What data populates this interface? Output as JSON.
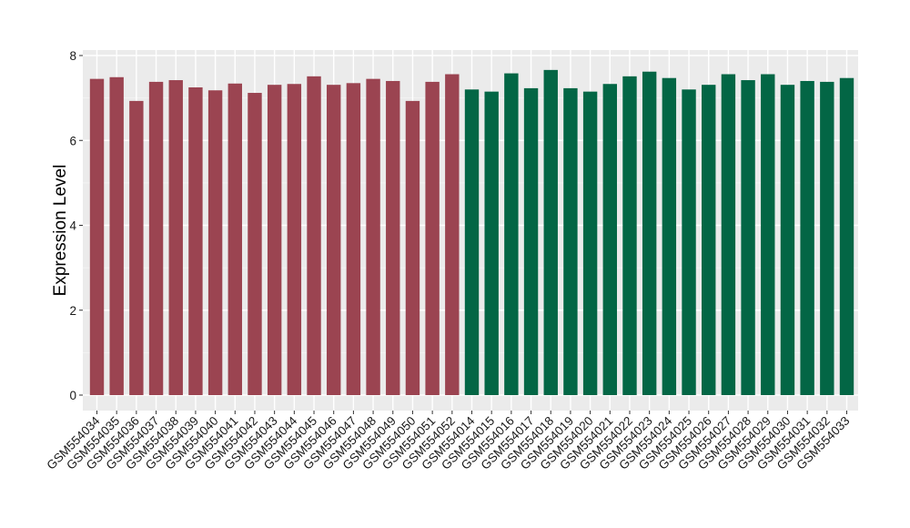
{
  "chart_data": {
    "type": "bar",
    "xlabel": "",
    "ylabel": "Expression Level",
    "ylim": [
      0,
      8
    ],
    "yticks": [
      0,
      2,
      4,
      6,
      8
    ],
    "grid": true,
    "background": "#ebebeb",
    "categories": [
      "GSM554034",
      "GSM554035",
      "GSM554036",
      "GSM554037",
      "GSM554038",
      "GSM554039",
      "GSM554040",
      "GSM554041",
      "GSM554042",
      "GSM554043",
      "GSM554044",
      "GSM554045",
      "GSM554046",
      "GSM554047",
      "GSM554048",
      "GSM554049",
      "GSM554050",
      "GSM554051",
      "GSM554052",
      "GSM554014",
      "GSM554015",
      "GSM554016",
      "GSM554017",
      "GSM554018",
      "GSM554019",
      "GSM554020",
      "GSM554021",
      "GSM554022",
      "GSM554023",
      "GSM554024",
      "GSM554025",
      "GSM554026",
      "GSM554027",
      "GSM554028",
      "GSM554029",
      "GSM554030",
      "GSM554031",
      "GSM554032",
      "GSM554033"
    ],
    "values": [
      7.45,
      7.49,
      6.93,
      7.38,
      7.42,
      7.25,
      7.18,
      7.34,
      7.12,
      7.31,
      7.33,
      7.51,
      7.31,
      7.35,
      7.45,
      7.4,
      6.93,
      7.38,
      7.56,
      7.2,
      7.15,
      7.58,
      7.23,
      7.66,
      7.23,
      7.15,
      7.33,
      7.51,
      7.62,
      7.47,
      7.2,
      7.31,
      7.56,
      7.42,
      7.56,
      7.31,
      7.4,
      7.38,
      7.47
    ],
    "group_colors": [
      "#9b4451",
      "#9b4451",
      "#9b4451",
      "#9b4451",
      "#9b4451",
      "#9b4451",
      "#9b4451",
      "#9b4451",
      "#9b4451",
      "#9b4451",
      "#9b4451",
      "#9b4451",
      "#9b4451",
      "#9b4451",
      "#9b4451",
      "#9b4451",
      "#9b4451",
      "#9b4451",
      "#9b4451",
      "#036645",
      "#036645",
      "#036645",
      "#036645",
      "#036645",
      "#036645",
      "#036645",
      "#036645",
      "#036645",
      "#036645",
      "#036645",
      "#036645",
      "#036645",
      "#036645",
      "#036645",
      "#036645",
      "#036645",
      "#036645",
      "#036645",
      "#036645"
    ]
  }
}
